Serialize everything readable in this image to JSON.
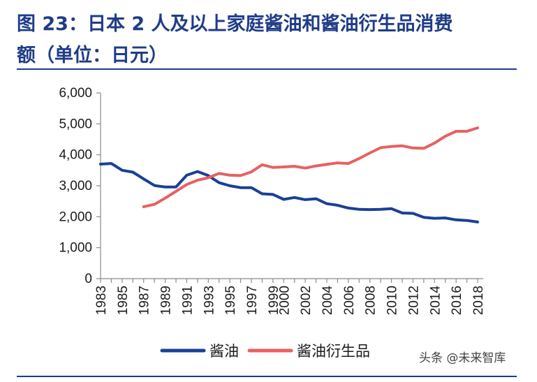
{
  "title": {
    "line1": "图 23：日本 2 人及以上家庭酱油和酱油衍生品消费",
    "line2": "额（单位：日元）"
  },
  "watermark": "头条 @未来智库",
  "colors": {
    "title": "#1f3c88",
    "soy_sauce": "#1a3f99",
    "derivatives": "#e8615f",
    "axis": "#8a8a8a"
  },
  "chart_data": {
    "type": "line",
    "ylim": [
      0,
      6000
    ],
    "yticks": [
      0,
      1000,
      2000,
      3000,
      4000,
      5000,
      6000
    ],
    "ytick_labels": [
      "0",
      "1,000",
      "2,000",
      "3,000",
      "4,000",
      "5,000",
      "6,000"
    ],
    "xlim": [
      1983,
      2018
    ],
    "xticks": [
      1983,
      1985,
      1987,
      1989,
      1991,
      1993,
      1995,
      1997,
      1999,
      2000,
      2002,
      2004,
      2006,
      2008,
      2010,
      2012,
      2014,
      2016,
      2018
    ],
    "xtick_labels": [
      "1983",
      "1985",
      "1987",
      "1989",
      "1991",
      "1993",
      "1995",
      "1997",
      "1999",
      "2000",
      "2002",
      "2004",
      "2006",
      "2008",
      "2010",
      "2012",
      "2014",
      "2016",
      "2018"
    ],
    "legend_position": "bottom",
    "grid": false,
    "series": [
      {
        "name": "酱油",
        "color": "#1a3f99",
        "x": [
          1983,
          1984,
          1985,
          1986,
          1987,
          1988,
          1989,
          1990,
          1991,
          1992,
          1993,
          1994,
          1995,
          1996,
          1997,
          1998,
          1999,
          2000,
          2001,
          2002,
          2003,
          2004,
          2005,
          2006,
          2007,
          2008,
          2009,
          2010,
          2011,
          2012,
          2013,
          2014,
          2015,
          2016,
          2017,
          2018
        ],
        "values": [
          3700,
          3720,
          3500,
          3440,
          3220,
          3010,
          2960,
          2960,
          3340,
          3460,
          3330,
          3100,
          3000,
          2940,
          2940,
          2740,
          2720,
          2560,
          2620,
          2550,
          2580,
          2420,
          2370,
          2280,
          2240,
          2230,
          2240,
          2260,
          2120,
          2110,
          1980,
          1950,
          1960,
          1900,
          1880,
          1830
        ]
      },
      {
        "name": "酱油衍生品",
        "color": "#e8615f",
        "x": [
          1987,
          1988,
          1989,
          1990,
          1991,
          1992,
          1993,
          1994,
          1995,
          1996,
          1997,
          1998,
          1999,
          2000,
          2001,
          2002,
          2003,
          2004,
          2005,
          2006,
          2007,
          2008,
          2009,
          2010,
          2011,
          2012,
          2013,
          2014,
          2015,
          2016,
          2017,
          2018
        ],
        "values": [
          2320,
          2400,
          2600,
          2820,
          3040,
          3180,
          3260,
          3400,
          3340,
          3330,
          3450,
          3680,
          3590,
          3610,
          3630,
          3570,
          3640,
          3690,
          3740,
          3720,
          3880,
          4060,
          4230,
          4270,
          4290,
          4220,
          4210,
          4380,
          4600,
          4760,
          4760,
          4870
        ]
      }
    ]
  }
}
